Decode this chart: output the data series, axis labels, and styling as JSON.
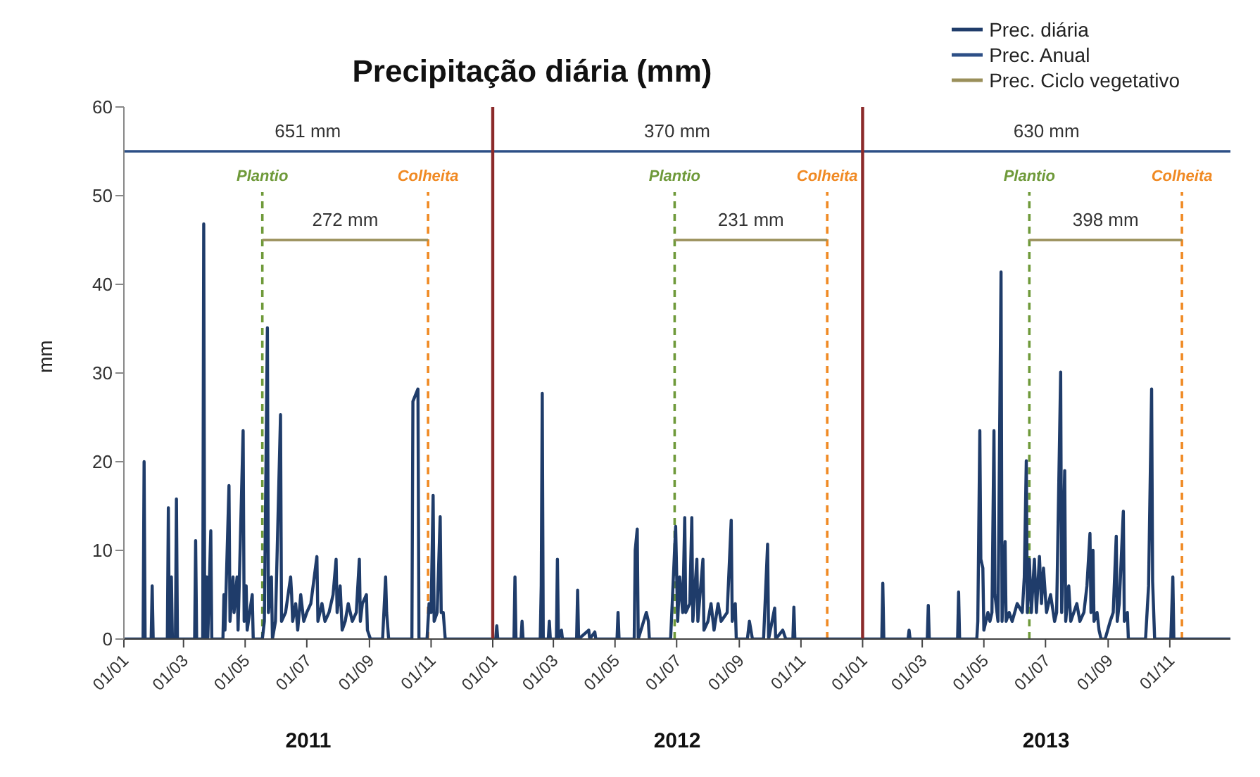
{
  "chart_data": {
    "type": "line",
    "title": "Precipitação diária (mm)",
    "ylabel": "mm",
    "legend": "top right",
    "ylim": [
      0,
      60
    ],
    "yticks": [
      0,
      10,
      20,
      30,
      40,
      50,
      60
    ],
    "xlim": [
      "2011-01-01",
      "2013-12-31"
    ],
    "xticks": [
      {
        "value": "2011-01-01",
        "label": "01/01"
      },
      {
        "value": "2011-03-01",
        "label": "01/03"
      },
      {
        "value": "2011-05-01",
        "label": "01/05"
      },
      {
        "value": "2011-07-01",
        "label": "01/07"
      },
      {
        "value": "2011-09-01",
        "label": "01/09"
      },
      {
        "value": "2011-11-01",
        "label": "01/11"
      },
      {
        "value": "2012-01-01",
        "label": "01/01"
      },
      {
        "value": "2012-03-01",
        "label": "01/03"
      },
      {
        "value": "2012-05-01",
        "label": "01/05"
      },
      {
        "value": "2012-07-01",
        "label": "01/07"
      },
      {
        "value": "2012-09-01",
        "label": "01/09"
      },
      {
        "value": "2012-11-01",
        "label": "01/11"
      },
      {
        "value": "2013-01-01",
        "label": "01/01"
      },
      {
        "value": "2013-03-01",
        "label": "01/03"
      },
      {
        "value": "2013-05-01",
        "label": "01/05"
      },
      {
        "value": "2013-07-01",
        "label": "01/07"
      },
      {
        "value": "2013-09-01",
        "label": "01/09"
      },
      {
        "value": "2013-11-01",
        "label": "01/11"
      }
    ],
    "series": [
      {
        "name": "Prec. diária",
        "color": "#1f3c6a",
        "x": [
          "2011-01-01",
          "2011-01-20",
          "2011-01-21",
          "2011-01-22",
          "2011-01-28",
          "2011-01-29",
          "2011-01-30",
          "2011-02-13",
          "2011-02-14",
          "2011-02-15",
          "2011-02-17",
          "2011-02-18",
          "2011-02-21",
          "2011-02-22",
          "2011-02-23",
          "2011-03-12",
          "2011-03-13",
          "2011-03-14",
          "2011-03-20",
          "2011-03-21",
          "2011-03-22",
          "2011-03-24",
          "2011-03-25",
          "2011-03-28",
          "2011-03-29",
          "2011-04-09",
          "2011-04-10",
          "2011-04-11",
          "2011-04-15",
          "2011-04-16",
          "2011-04-19",
          "2011-04-20",
          "2011-04-23",
          "2011-04-24",
          "2011-04-29",
          "2011-04-30",
          "2011-05-02",
          "2011-05-03",
          "2011-05-08",
          "2011-05-09",
          "2011-05-18",
          "2011-05-20",
          "2011-05-23",
          "2011-05-24",
          "2011-05-27",
          "2011-05-28",
          "2011-05-31",
          "2011-06-05",
          "2011-06-06",
          "2011-06-10",
          "2011-06-15",
          "2011-06-16",
          "2011-06-17",
          "2011-06-20",
          "2011-06-22",
          "2011-06-25",
          "2011-06-28",
          "2011-07-01",
          "2011-07-05",
          "2011-07-11",
          "2011-07-12",
          "2011-07-16",
          "2011-07-19",
          "2011-07-23",
          "2011-07-27",
          "2011-07-30",
          "2011-07-31",
          "2011-08-03",
          "2011-08-05",
          "2011-08-08",
          "2011-08-11",
          "2011-08-15",
          "2011-08-19",
          "2011-08-22",
          "2011-08-23",
          "2011-08-25",
          "2011-08-29",
          "2011-08-30",
          "2011-09-02",
          "2011-09-14",
          "2011-09-17",
          "2011-09-18",
          "2011-09-20",
          "2011-10-13",
          "2011-10-14",
          "2011-10-19",
          "2011-10-20",
          "2011-10-28",
          "2011-10-30",
          "2011-11-01",
          "2011-11-03",
          "2011-11-04",
          "2011-11-07",
          "2011-11-10",
          "2011-11-11",
          "2011-11-13",
          "2011-11-15",
          "2011-12-31",
          "2012-01-01",
          "2012-01-04",
          "2012-01-05",
          "2012-01-06",
          "2012-01-22",
          "2012-01-23",
          "2012-01-24",
          "2012-01-29",
          "2012-01-30",
          "2012-01-31",
          "2012-02-17",
          "2012-02-18",
          "2012-02-19",
          "2012-02-20",
          "2012-02-25",
          "2012-02-26",
          "2012-02-27",
          "2012-03-04",
          "2012-03-05",
          "2012-03-06",
          "2012-03-09",
          "2012-03-10",
          "2012-03-24",
          "2012-03-25",
          "2012-03-26",
          "2012-04-05",
          "2012-04-06",
          "2012-04-11",
          "2012-04-12",
          "2012-05-03",
          "2012-05-04",
          "2012-05-05",
          "2012-05-20",
          "2012-05-21",
          "2012-05-23",
          "2012-05-24",
          "2012-06-01",
          "2012-06-03",
          "2012-06-04",
          "2012-06-25",
          "2012-06-27",
          "2012-06-30",
          "2012-07-02",
          "2012-07-04",
          "2012-07-07",
          "2012-07-09",
          "2012-07-10",
          "2012-07-14",
          "2012-07-16",
          "2012-07-17",
          "2012-07-21",
          "2012-07-22",
          "2012-07-27",
          "2012-07-28",
          "2012-08-01",
          "2012-08-04",
          "2012-08-07",
          "2012-08-11",
          "2012-08-14",
          "2012-08-20",
          "2012-08-24",
          "2012-08-25",
          "2012-08-28",
          "2012-08-29",
          "2012-09-09",
          "2012-09-11",
          "2012-09-14",
          "2012-09-25",
          "2012-09-29",
          "2012-09-30",
          "2012-10-06",
          "2012-10-07",
          "2012-10-14",
          "2012-10-17",
          "2012-10-24",
          "2012-10-25",
          "2012-10-26",
          "2012-12-31",
          "2013-01-01",
          "2013-01-20",
          "2013-01-21",
          "2013-01-22",
          "2013-02-15",
          "2013-02-16",
          "2013-02-17",
          "2013-03-06",
          "2013-03-07",
          "2013-03-08",
          "2013-04-05",
          "2013-04-06",
          "2013-04-07",
          "2013-04-24",
          "2013-04-25",
          "2013-04-27",
          "2013-04-28",
          "2013-04-30",
          "2013-05-01",
          "2013-05-05",
          "2013-05-07",
          "2013-05-09",
          "2013-05-11",
          "2013-05-12",
          "2013-05-15",
          "2013-05-18",
          "2013-05-19",
          "2013-05-22",
          "2013-05-23",
          "2013-05-26",
          "2013-05-29",
          "2013-06-03",
          "2013-06-08",
          "2013-06-10",
          "2013-06-12",
          "2013-06-13",
          "2013-06-15",
          "2013-06-17",
          "2013-06-20",
          "2013-06-22",
          "2013-06-25",
          "2013-06-27",
          "2013-06-29",
          "2013-07-02",
          "2013-07-06",
          "2013-07-10",
          "2013-07-12",
          "2013-07-16",
          "2013-07-17",
          "2013-07-20",
          "2013-07-21",
          "2013-07-24",
          "2013-07-26",
          "2013-07-29",
          "2013-08-01",
          "2013-08-04",
          "2013-08-08",
          "2013-08-11",
          "2013-08-14",
          "2013-08-15",
          "2013-08-17",
          "2013-08-18",
          "2013-08-21",
          "2013-08-23",
          "2013-08-25",
          "2013-08-29",
          "2013-09-03",
          "2013-09-06",
          "2013-09-09",
          "2013-09-10",
          "2013-09-12",
          "2013-09-16",
          "2013-09-17",
          "2013-09-20",
          "2013-09-21",
          "2013-10-08",
          "2013-10-11",
          "2013-10-14",
          "2013-10-15",
          "2013-10-17",
          "2013-11-02",
          "2013-11-04",
          "2013-11-05",
          "2013-12-31"
        ],
        "values": [
          0,
          0,
          20,
          0,
          0,
          6,
          0,
          0,
          14.8,
          0,
          7,
          0,
          0,
          15.8,
          0,
          0,
          11.1,
          0,
          0,
          46.8,
          0,
          7,
          0,
          12.2,
          0,
          0,
          5,
          1,
          17.3,
          2,
          7,
          3,
          7,
          1,
          23.5,
          2,
          6,
          1,
          5,
          0,
          0,
          2,
          35.1,
          3,
          7,
          0,
          2,
          25.3,
          2,
          3,
          7,
          5,
          2,
          4,
          1,
          5,
          2,
          3,
          4,
          9.3,
          2,
          4,
          2,
          3,
          5,
          9,
          3,
          6,
          1,
          2,
          4,
          2,
          3,
          9,
          2,
          4,
          5,
          1,
          0,
          0,
          7,
          3,
          0,
          0,
          26.8,
          28.2,
          0,
          0,
          4,
          3,
          16.2,
          2,
          3,
          13.8,
          3,
          3,
          0,
          0,
          0,
          0,
          1.5,
          0,
          0,
          7,
          0,
          0,
          2,
          0,
          0,
          6,
          27.7,
          0,
          0,
          2,
          0,
          0,
          9,
          0,
          1,
          0,
          0,
          5.5,
          0,
          1,
          0,
          0.8,
          0,
          0,
          3,
          0,
          0,
          10,
          12.4,
          0,
          3,
          2,
          0,
          0,
          5,
          12.7,
          2,
          7,
          3,
          13.7,
          3,
          4,
          13.7,
          2,
          9,
          2,
          9,
          1,
          2,
          4,
          1,
          4,
          2,
          3,
          13.4,
          2,
          4,
          0,
          0,
          2,
          0,
          0,
          10.7,
          0,
          3.5,
          0,
          1,
          0,
          0,
          3.6,
          0,
          0,
          0,
          0,
          6.3,
          0,
          0,
          1,
          0,
          0,
          3.8,
          0,
          0,
          5.3,
          0,
          0,
          2,
          23.5,
          9,
          8,
          1,
          3,
          2,
          3,
          23.5,
          5,
          2,
          41.4,
          2,
          11,
          2,
          3,
          2,
          4,
          3,
          7,
          20.1,
          3,
          9,
          3,
          9,
          3,
          9.3,
          4,
          8,
          3,
          5,
          2,
          3,
          30.1,
          3,
          19,
          2,
          6,
          2,
          3,
          4,
          2,
          3,
          6,
          11.9,
          3,
          10,
          2,
          3,
          1,
          0,
          0,
          2,
          3,
          11.6,
          2,
          4,
          14.4,
          2,
          3,
          0,
          0,
          6,
          28.2,
          6.5,
          0,
          0,
          7,
          0,
          0
        ]
      },
      {
        "name": "Prec. Anual",
        "color": "#2d4f86",
        "x": [
          "2011-01-01",
          "2011-12-31",
          "2012-01-01",
          "2012-12-31",
          "2013-01-01",
          "2013-12-31"
        ],
        "values": [
          55,
          55,
          55,
          55,
          55,
          55
        ]
      },
      {
        "name": "Prec. Ciclo vegetativo",
        "color": "#9a8f5a",
        "x": [
          "2011-05-18",
          "2011-10-29"
        ],
        "values": [
          45,
          45
        ]
      },
      {
        "color": "#9a8f5a",
        "x": [
          "2012-06-29",
          "2012-11-27"
        ],
        "values": [
          45,
          45
        ]
      },
      {
        "color": "#9a8f5a",
        "x": [
          "2013-06-15",
          "2013-11-13"
        ],
        "values": [
          45,
          45
        ]
      }
    ],
    "ref_lines": [
      {
        "axis": "x",
        "value": "2012-01-01",
        "color": "#8b2a2a",
        "line_style": "solid"
      },
      {
        "axis": "x",
        "value": "2013-01-01",
        "color": "#8b2a2a",
        "line_style": "solid"
      },
      {
        "axis": "x",
        "value": "2011-05-18",
        "label": "Plantio",
        "color": "#6f9a3a",
        "line_style": "dashed"
      },
      {
        "axis": "x",
        "value": "2011-10-29",
        "label": "Colheita",
        "color": "#f08a24",
        "line_style": "dashed"
      },
      {
        "axis": "x",
        "value": "2012-06-29",
        "label": "Plantio",
        "color": "#6f9a3a",
        "line_style": "dashed"
      },
      {
        "axis": "x",
        "value": "2012-11-27",
        "label": "Colheita",
        "color": "#f08a24",
        "line_style": "dashed"
      },
      {
        "axis": "x",
        "value": "2013-06-15",
        "label": "Plantio",
        "color": "#6f9a3a",
        "line_style": "dashed"
      },
      {
        "axis": "x",
        "value": "2013-11-13",
        "label": "Colheita",
        "color": "#f08a24",
        "line_style": "dashed"
      }
    ],
    "annotations": [
      "651 mm",
      "370 mm",
      "630 mm",
      "272 mm",
      "231 mm",
      "398 mm",
      "2011",
      "2012",
      "2013"
    ]
  }
}
